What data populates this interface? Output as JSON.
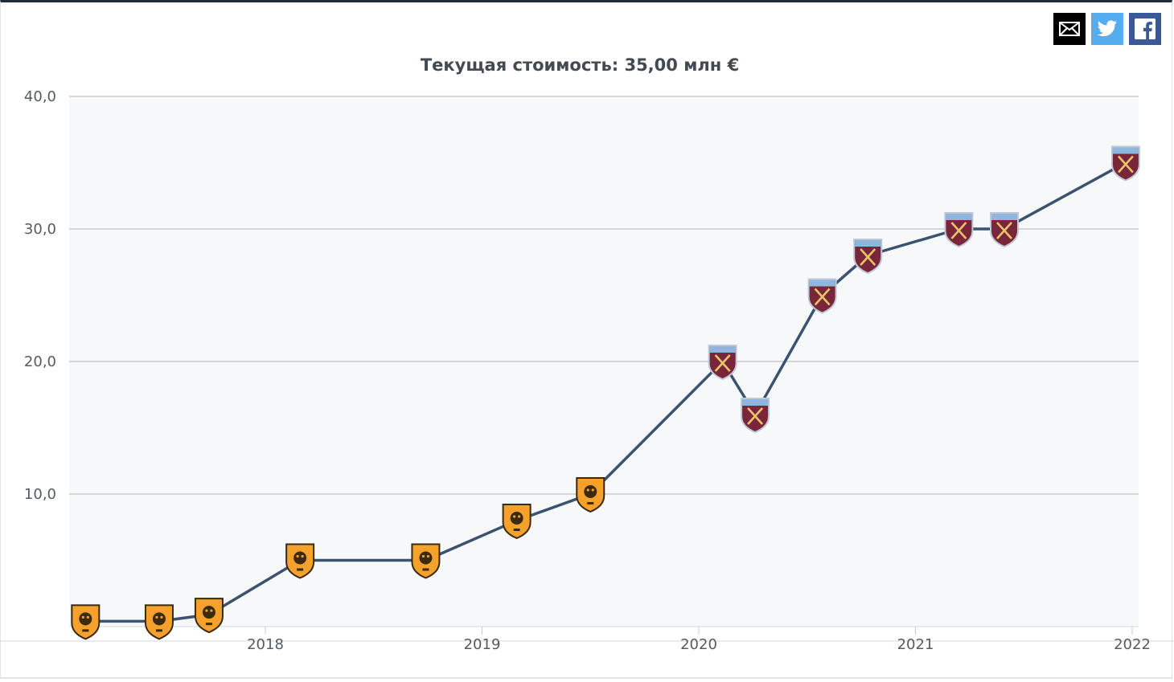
{
  "share": {
    "mail_icon": "mail-icon",
    "twitter_icon": "twitter-icon",
    "facebook_icon": "facebook-icon",
    "colors": {
      "mail": "#000000",
      "twitter": "#55acee",
      "facebook": "#3b5998"
    }
  },
  "chart_data": {
    "type": "line",
    "title": "Текущая стоимость: 35,00 млн €",
    "xlabel": "",
    "ylabel": "",
    "ylim": [
      0,
      40
    ],
    "yticks": [
      10,
      20,
      30,
      40
    ],
    "ytick_labels": [
      "10,0",
      "20,0",
      "30,0",
      "40,0"
    ],
    "xlim": [
      2017.12,
      2022.0
    ],
    "xticks": [
      2018,
      2019,
      2020,
      2021,
      2022
    ],
    "xtick_labels": [
      "2018",
      "2019",
      "2020",
      "2021",
      "2022"
    ],
    "grid": true,
    "line_color": "#3b5270",
    "colors": {
      "hull": "#f5a12c",
      "west_ham": "#7a263a"
    },
    "points": [
      {
        "x": 2017.17,
        "y": 0.4,
        "club": "hull"
      },
      {
        "x": 2017.51,
        "y": 0.4,
        "club": "hull"
      },
      {
        "x": 2017.74,
        "y": 0.9,
        "club": "hull"
      },
      {
        "x": 2018.16,
        "y": 5.0,
        "club": "hull"
      },
      {
        "x": 2018.74,
        "y": 5.0,
        "club": "hull"
      },
      {
        "x": 2019.16,
        "y": 8.0,
        "club": "hull"
      },
      {
        "x": 2019.5,
        "y": 10.0,
        "club": "hull"
      },
      {
        "x": 2020.11,
        "y": 20.0,
        "club": "west_ham"
      },
      {
        "x": 2020.26,
        "y": 16.0,
        "club": "west_ham"
      },
      {
        "x": 2020.57,
        "y": 25.0,
        "club": "west_ham"
      },
      {
        "x": 2020.78,
        "y": 28.0,
        "club": "west_ham"
      },
      {
        "x": 2021.2,
        "y": 30.0,
        "club": "west_ham"
      },
      {
        "x": 2021.41,
        "y": 30.0,
        "club": "west_ham"
      },
      {
        "x": 2021.97,
        "y": 35.0,
        "club": "west_ham"
      }
    ]
  }
}
